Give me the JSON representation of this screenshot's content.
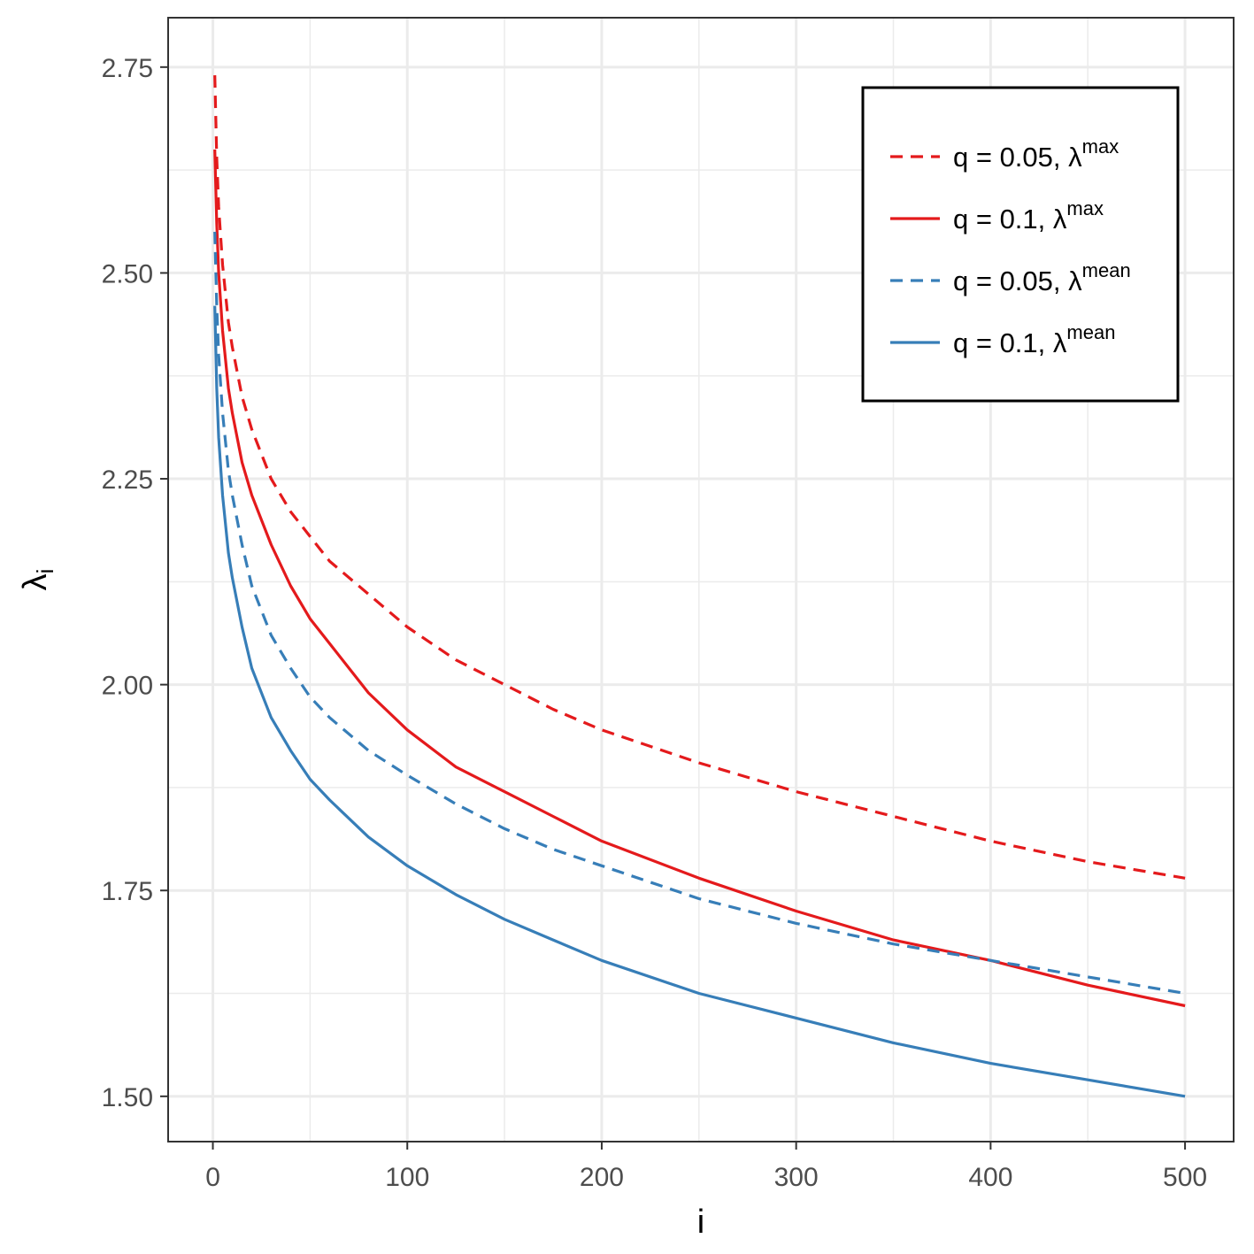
{
  "chart_data": {
    "type": "line",
    "xlabel": "i",
    "ylabel_base": "λ",
    "ylabel_sub": "i",
    "xlim": [
      -23,
      525
    ],
    "ylim": [
      1.445,
      2.81
    ],
    "x_ticks": [
      0,
      100,
      200,
      300,
      400,
      500
    ],
    "x_tick_labels": [
      "0",
      "100",
      "200",
      "300",
      "400",
      "500"
    ],
    "x_minor_ticks": [
      50,
      150,
      250,
      350,
      450
    ],
    "y_ticks": [
      1.5,
      1.75,
      2.0,
      2.25,
      2.5,
      2.75
    ],
    "y_tick_labels": [
      "1.50",
      "1.75",
      "2.00",
      "2.25",
      "2.50",
      "2.75"
    ],
    "y_minor_ticks": [
      1.625,
      1.875,
      2.125,
      2.375,
      2.625
    ],
    "grid": true,
    "legend_position": "top-right",
    "x": [
      1,
      2,
      3,
      5,
      8,
      10,
      15,
      20,
      30,
      40,
      50,
      60,
      80,
      100,
      125,
      150,
      175,
      200,
      250,
      300,
      350,
      400,
      450,
      500
    ],
    "series": [
      {
        "label_main": "q = 0.05, λ",
        "label_sup": "max",
        "color": "#e41a1c",
        "dash": "dashed",
        "values": [
          2.74,
          2.64,
          2.58,
          2.51,
          2.44,
          2.41,
          2.35,
          2.31,
          2.25,
          2.21,
          2.18,
          2.15,
          2.11,
          2.07,
          2.03,
          2.0,
          1.97,
          1.945,
          1.905,
          1.87,
          1.84,
          1.81,
          1.785,
          1.765
        ]
      },
      {
        "label_main": "q = 0.1, λ",
        "label_sup": "max",
        "color": "#e41a1c",
        "dash": "solid",
        "values": [
          2.65,
          2.56,
          2.5,
          2.43,
          2.36,
          2.33,
          2.27,
          2.23,
          2.17,
          2.12,
          2.08,
          2.05,
          1.99,
          1.945,
          1.9,
          1.87,
          1.84,
          1.81,
          1.765,
          1.725,
          1.69,
          1.665,
          1.635,
          1.61
        ]
      },
      {
        "label_main": "q = 0.05, λ",
        "label_sup": "mean",
        "color": "#377eb8",
        "dash": "dashed",
        "values": [
          2.55,
          2.46,
          2.4,
          2.33,
          2.26,
          2.23,
          2.17,
          2.12,
          2.06,
          2.02,
          1.985,
          1.96,
          1.92,
          1.89,
          1.855,
          1.825,
          1.8,
          1.78,
          1.74,
          1.71,
          1.685,
          1.665,
          1.645,
          1.625
        ]
      },
      {
        "label_main": "q = 0.1, λ",
        "label_sup": "mean",
        "color": "#377eb8",
        "dash": "solid",
        "values": [
          2.46,
          2.36,
          2.3,
          2.23,
          2.16,
          2.13,
          2.07,
          2.02,
          1.96,
          1.92,
          1.885,
          1.86,
          1.815,
          1.78,
          1.745,
          1.715,
          1.69,
          1.665,
          1.625,
          1.595,
          1.565,
          1.54,
          1.52,
          1.5
        ]
      }
    ]
  }
}
